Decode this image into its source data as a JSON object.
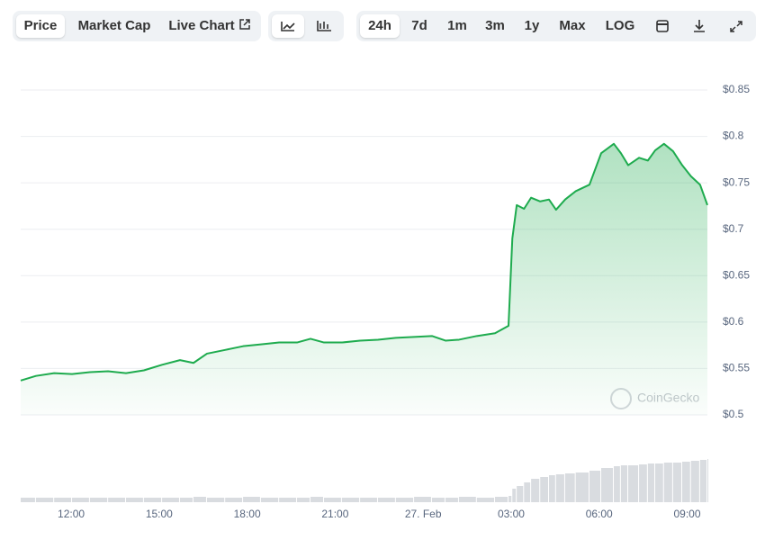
{
  "toolbar": {
    "tabs": [
      "Price",
      "Market Cap",
      "Live Chart"
    ],
    "ranges": [
      "24h",
      "7d",
      "1m",
      "3m",
      "1y",
      "Max",
      "LOG"
    ]
  },
  "chart_data": {
    "type": "line",
    "watermark": "CoinGecko",
    "color": "#1eab4e",
    "grid": true,
    "x": [
      10.28,
      10.8,
      11.42,
      12.03,
      12.64,
      13.26,
      13.87,
      14.48,
      15.1,
      15.71,
      16.17,
      16.63,
      17.25,
      17.86,
      18.47,
      19.09,
      19.7,
      20.16,
      20.62,
      21.23,
      21.85,
      22.46,
      23.07,
      23.69,
      24.3,
      24.76,
      25.22,
      25.83,
      26.45,
      26.91,
      27.04,
      27.19,
      27.44,
      27.68,
      27.99,
      28.29,
      28.53,
      28.84,
      29.2,
      29.67,
      30.07,
      30.5,
      30.74,
      30.99,
      31.36,
      31.66,
      31.91,
      32.21,
      32.52,
      32.83,
      33.13,
      33.44,
      33.69
    ],
    "series": [
      {
        "name": "Price",
        "color": "#1eab4e",
        "values": [
          0.537,
          0.542,
          0.545,
          0.544,
          0.546,
          0.547,
          0.545,
          0.548,
          0.554,
          0.559,
          0.556,
          0.566,
          0.57,
          0.574,
          0.576,
          0.578,
          0.578,
          0.582,
          0.578,
          0.578,
          0.58,
          0.581,
          0.583,
          0.584,
          0.585,
          0.58,
          0.581,
          0.585,
          0.588,
          0.596,
          0.69,
          0.726,
          0.722,
          0.734,
          0.73,
          0.732,
          0.721,
          0.732,
          0.741,
          0.748,
          0.782,
          0.792,
          0.782,
          0.769,
          0.777,
          0.774,
          0.785,
          0.792,
          0.784,
          0.769,
          0.757,
          0.748,
          0.726
        ]
      },
      {
        "name": "Volume",
        "color": "#d9dce0",
        "values": [
          5,
          5,
          5,
          5,
          5,
          5,
          5,
          5,
          5,
          5,
          6,
          5,
          5,
          6,
          5,
          5,
          5,
          6,
          5,
          5,
          5,
          5,
          5,
          6,
          5,
          5,
          6,
          5,
          6,
          7,
          15,
          18,
          22,
          26,
          28,
          30,
          31,
          32,
          33,
          35,
          38,
          40,
          41,
          41,
          42,
          43,
          43,
          44,
          44,
          45,
          46,
          47,
          48
        ]
      }
    ],
    "volume_lim": [
      0,
      50
    ],
    "xlim": [
      10.28,
      33.69
    ],
    "xticks": [
      {
        "value": 12,
        "label": "12:00"
      },
      {
        "value": 15,
        "label": "15:00"
      },
      {
        "value": 18,
        "label": "18:00"
      },
      {
        "value": 21,
        "label": "21:00"
      },
      {
        "value": 24,
        "label": "27. Feb"
      },
      {
        "value": 27,
        "label": "03:00"
      },
      {
        "value": 30,
        "label": "06:00"
      },
      {
        "value": 33,
        "label": "09:00"
      }
    ],
    "ylim": [
      0.5,
      0.85
    ],
    "yticks": [
      {
        "value": 0.5,
        "label": "$0.5"
      },
      {
        "value": 0.55,
        "label": "$0.55"
      },
      {
        "value": 0.6,
        "label": "$0.6"
      },
      {
        "value": 0.65,
        "label": "$0.65"
      },
      {
        "value": 0.7,
        "label": "$0.7"
      },
      {
        "value": 0.75,
        "label": "$0.75"
      },
      {
        "value": 0.8,
        "label": "$0.8"
      },
      {
        "value": 0.85,
        "label": "$0.85"
      }
    ]
  }
}
